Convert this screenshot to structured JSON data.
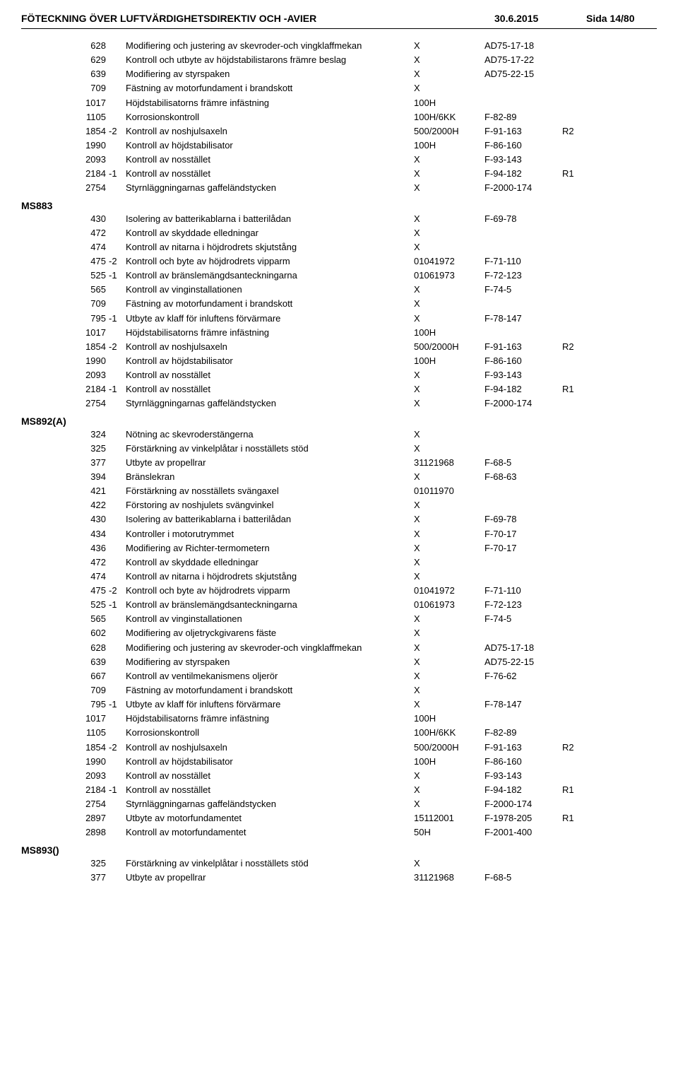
{
  "header": {
    "title": "FÖTECKNING ÖVER LUFTVÄRDIGHETSDIREKTIV OCH -AVIER",
    "date": "30.6.2015",
    "page": "Sida 14/80"
  },
  "groups": [
    {
      "label": "",
      "indent": true,
      "rows": [
        {
          "num": "628",
          "suffix": "",
          "desc": "Modifiering och justering av skevroder-och vingklaffmekan",
          "val": "X",
          "ref": "AD75-17-18",
          "rev": ""
        },
        {
          "num": "629",
          "suffix": "",
          "desc": "Kontroll och utbyte av höjdstabilistarons främre beslag",
          "val": "X",
          "ref": "AD75-17-22",
          "rev": ""
        },
        {
          "num": "639",
          "suffix": "",
          "desc": "Modifiering av styrspaken",
          "val": "X",
          "ref": "AD75-22-15",
          "rev": ""
        },
        {
          "num": "709",
          "suffix": "",
          "desc": "Fästning av motorfundament i brandskott",
          "val": "X",
          "ref": "",
          "rev": ""
        },
        {
          "num": "1017",
          "suffix": "",
          "desc": "Höjdstabilisatorns främre infästning",
          "val": "100H",
          "ref": "",
          "rev": ""
        },
        {
          "num": "1105",
          "suffix": "",
          "desc": "Korrosionskontroll",
          "val": "100H/6KK",
          "ref": "F-82-89",
          "rev": ""
        },
        {
          "num": "1854",
          "suffix": "-2",
          "desc": "Kontroll av noshjulsaxeln",
          "val": "500/2000H",
          "ref": "F-91-163",
          "rev": "R2"
        },
        {
          "num": "1990",
          "suffix": "",
          "desc": "Kontroll av höjdstabilisator",
          "val": "100H",
          "ref": "F-86-160",
          "rev": ""
        },
        {
          "num": "2093",
          "suffix": "",
          "desc": "Kontroll av nosstället",
          "val": "X",
          "ref": "F-93-143",
          "rev": ""
        },
        {
          "num": "2184",
          "suffix": "-1",
          "desc": "Kontroll av nosstället",
          "val": "X",
          "ref": "F-94-182",
          "rev": "R1"
        },
        {
          "num": "2754",
          "suffix": "",
          "desc": "Styrnläggningarnas gaffeländstycken",
          "val": "X",
          "ref": "F-2000-174",
          "rev": ""
        }
      ]
    },
    {
      "label": "MS883",
      "indent": true,
      "rows": [
        {
          "num": "430",
          "suffix": "",
          "desc": "Isolering av batterikablarna i batterilådan",
          "val": "X",
          "ref": "F-69-78",
          "rev": ""
        },
        {
          "num": "472",
          "suffix": "",
          "desc": "Kontroll av skyddade elledningar",
          "val": "X",
          "ref": "",
          "rev": ""
        },
        {
          "num": "474",
          "suffix": "",
          "desc": "Kontroll av nitarna i höjdrodrets skjutstång",
          "val": "X",
          "ref": "",
          "rev": ""
        },
        {
          "num": "475",
          "suffix": "-2",
          "desc": "Kontroll och byte av höjdrodrets vipparm",
          "val": "01041972",
          "ref": "F-71-110",
          "rev": ""
        },
        {
          "num": "525",
          "suffix": "-1",
          "desc": "Kontroll av bränslemängdsanteckningarna",
          "val": "01061973",
          "ref": "F-72-123",
          "rev": ""
        },
        {
          "num": "565",
          "suffix": "",
          "desc": "Kontroll av vinginstallationen",
          "val": "X",
          "ref": "F-74-5",
          "rev": ""
        },
        {
          "num": "709",
          "suffix": "",
          "desc": "Fästning av motorfundament i brandskott",
          "val": "X",
          "ref": "",
          "rev": ""
        },
        {
          "num": "795",
          "suffix": "-1",
          "desc": "Utbyte av klaff för inluftens förvärmare",
          "val": "X",
          "ref": "F-78-147",
          "rev": ""
        },
        {
          "num": "1017",
          "suffix": "",
          "desc": "Höjdstabilisatorns främre infästning",
          "val": "100H",
          "ref": "",
          "rev": ""
        },
        {
          "num": "1854",
          "suffix": "-2",
          "desc": "Kontroll av noshjulsaxeln",
          "val": "500/2000H",
          "ref": "F-91-163",
          "rev": "R2"
        },
        {
          "num": "1990",
          "suffix": "",
          "desc": "Kontroll av höjdstabilisator",
          "val": "100H",
          "ref": "F-86-160",
          "rev": ""
        },
        {
          "num": "2093",
          "suffix": "",
          "desc": "Kontroll av nosstället",
          "val": "X",
          "ref": "F-93-143",
          "rev": ""
        },
        {
          "num": "2184",
          "suffix": "-1",
          "desc": "Kontroll av nosstället",
          "val": "X",
          "ref": "F-94-182",
          "rev": "R1"
        },
        {
          "num": "2754",
          "suffix": "",
          "desc": "Styrnläggningarnas gaffeländstycken",
          "val": "X",
          "ref": "F-2000-174",
          "rev": ""
        }
      ]
    },
    {
      "label": "MS892(A)",
      "indent": true,
      "rows": [
        {
          "num": "324",
          "suffix": "",
          "desc": "Nötning ac skevroderstängerna",
          "val": "X",
          "ref": "",
          "rev": ""
        },
        {
          "num": "325",
          "suffix": "",
          "desc": "Förstärkning av vinkelplåtar i nosställets stöd",
          "val": "X",
          "ref": "",
          "rev": ""
        },
        {
          "num": "377",
          "suffix": "",
          "desc": "Utbyte av propellrar",
          "val": "31121968",
          "ref": "F-68-5",
          "rev": ""
        },
        {
          "num": "394",
          "suffix": "",
          "desc": "Bränslekran",
          "val": "X",
          "ref": "F-68-63",
          "rev": ""
        },
        {
          "num": "421",
          "suffix": "",
          "desc": "Förstärkning av nosställets svängaxel",
          "val": "01011970",
          "ref": "",
          "rev": ""
        },
        {
          "num": "422",
          "suffix": "",
          "desc": "Förstoring av noshjulets svängvinkel",
          "val": "X",
          "ref": "",
          "rev": ""
        },
        {
          "num": "430",
          "suffix": "",
          "desc": "Isolering av batterikablarna i batterilådan",
          "val": "X",
          "ref": "F-69-78",
          "rev": ""
        },
        {
          "num": "434",
          "suffix": "",
          "desc": "Kontroller i motorutrymmet",
          "val": "X",
          "ref": "F-70-17",
          "rev": ""
        },
        {
          "num": "436",
          "suffix": "",
          "desc": "Modifiering av Richter-termometern",
          "val": "X",
          "ref": "F-70-17",
          "rev": ""
        },
        {
          "num": "472",
          "suffix": "",
          "desc": "Kontroll av skyddade elledningar",
          "val": "X",
          "ref": "",
          "rev": ""
        },
        {
          "num": "474",
          "suffix": "",
          "desc": "Kontroll av nitarna i höjdrodrets skjutstång",
          "val": "X",
          "ref": "",
          "rev": ""
        },
        {
          "num": "475",
          "suffix": "-2",
          "desc": "Kontroll och byte av höjdrodrets vipparm",
          "val": "01041972",
          "ref": "F-71-110",
          "rev": ""
        },
        {
          "num": "525",
          "suffix": "-1",
          "desc": "Kontroll av bränslemängdsanteckningarna",
          "val": "01061973",
          "ref": "F-72-123",
          "rev": ""
        },
        {
          "num": "565",
          "suffix": "",
          "desc": "Kontroll av vinginstallationen",
          "val": "X",
          "ref": "F-74-5",
          "rev": ""
        },
        {
          "num": "602",
          "suffix": "",
          "desc": "Modifiering av oljetryckgivarens fäste",
          "val": "X",
          "ref": "",
          "rev": ""
        },
        {
          "num": "628",
          "suffix": "",
          "desc": "Modifiering och justering av skevroder-och vingklaffmekan",
          "val": "X",
          "ref": "AD75-17-18",
          "rev": ""
        },
        {
          "num": "639",
          "suffix": "",
          "desc": "Modifiering av styrspaken",
          "val": "X",
          "ref": "AD75-22-15",
          "rev": ""
        },
        {
          "num": "667",
          "suffix": "",
          "desc": "Kontroll av ventilmekanismens oljerör",
          "val": "X",
          "ref": "F-76-62",
          "rev": ""
        },
        {
          "num": "709",
          "suffix": "",
          "desc": "Fästning av motorfundament i brandskott",
          "val": "X",
          "ref": "",
          "rev": ""
        },
        {
          "num": "795",
          "suffix": "-1",
          "desc": "Utbyte av klaff för inluftens förvärmare",
          "val": "X",
          "ref": "F-78-147",
          "rev": ""
        },
        {
          "num": "1017",
          "suffix": "",
          "desc": "Höjdstabilisatorns främre infästning",
          "val": "100H",
          "ref": "",
          "rev": ""
        },
        {
          "num": "1105",
          "suffix": "",
          "desc": "Korrosionskontroll",
          "val": "100H/6KK",
          "ref": "F-82-89",
          "rev": ""
        },
        {
          "num": "1854",
          "suffix": "-2",
          "desc": "Kontroll av noshjulsaxeln",
          "val": "500/2000H",
          "ref": "F-91-163",
          "rev": "R2"
        },
        {
          "num": "1990",
          "suffix": "",
          "desc": "Kontroll av höjdstabilisator",
          "val": "100H",
          "ref": "F-86-160",
          "rev": ""
        },
        {
          "num": "2093",
          "suffix": "",
          "desc": "Kontroll av nosstället",
          "val": "X",
          "ref": "F-93-143",
          "rev": ""
        },
        {
          "num": "2184",
          "suffix": "-1",
          "desc": "Kontroll av nosstället",
          "val": "X",
          "ref": "F-94-182",
          "rev": "R1"
        },
        {
          "num": "2754",
          "suffix": "",
          "desc": "Styrnläggningarnas gaffeländstycken",
          "val": "X",
          "ref": "F-2000-174",
          "rev": ""
        },
        {
          "num": "2897",
          "suffix": "",
          "desc": "Utbyte av motorfundamentet",
          "val": "15112001",
          "ref": "F-1978-205",
          "rev": "R1"
        },
        {
          "num": "2898",
          "suffix": "",
          "desc": "Kontroll av motorfundamentet",
          "val": "50H",
          "ref": "F-2001-400",
          "rev": ""
        }
      ]
    },
    {
      "label": "MS893()",
      "indent": true,
      "rows": [
        {
          "num": "325",
          "suffix": "",
          "desc": "Förstärkning av vinkelplåtar i nosställets stöd",
          "val": "X",
          "ref": "",
          "rev": ""
        },
        {
          "num": "377",
          "suffix": "",
          "desc": "Utbyte av propellrar",
          "val": "31121968",
          "ref": "F-68-5",
          "rev": ""
        }
      ]
    }
  ]
}
